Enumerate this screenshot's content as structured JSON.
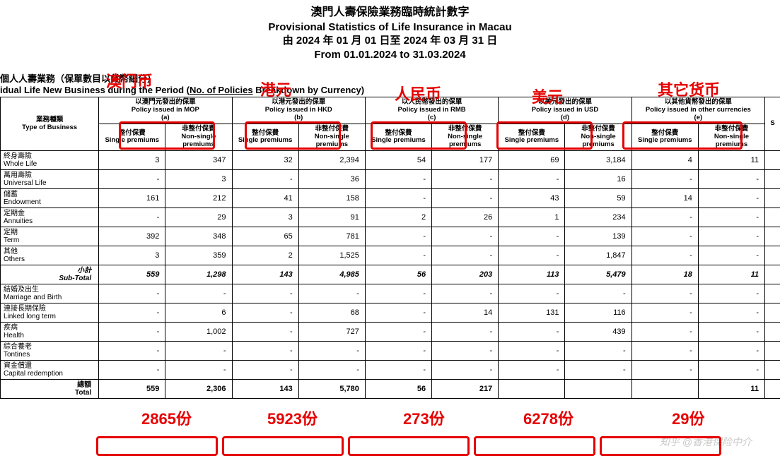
{
  "header": {
    "title_cn": "澳門人壽保險業務臨時統計數字",
    "title_en": "Provisional Statistics of Life Insurance in Macau",
    "period_cn": "由 2024 年 01 月 01 日至 2024 年 03 月 31 日",
    "period_en": "From 01.01.2024 to 31.03.2024"
  },
  "subhead": {
    "cn": "個人人壽業務（保單數目以貨幣細分）",
    "en_pre": "idual Life New Business during the Period (",
    "en_underline": "No. of Policies",
    "en_post": " Breakdown by Currency)"
  },
  "columns": {
    "type_cn": "業務種類",
    "type_en": "Type of Business",
    "groups": [
      {
        "cn": "以澳門元發出的保單",
        "en": "Policy issued in MOP",
        "tag": "(a)"
      },
      {
        "cn": "以港元發出的保單",
        "en": "Policy issued in HKD",
        "tag": "(b)"
      },
      {
        "cn": "以人民幣發出的保單",
        "en": "Policy issued in RMB",
        "tag": "(c)"
      },
      {
        "cn": "以美元發出的保單",
        "en": "Policy issued in USD",
        "tag": "(d)"
      },
      {
        "cn": "以其他貨幣發出的保單",
        "en": "Policy issued in other currencies",
        "tag": "(e)"
      }
    ],
    "sub_single_cn": "整付保費",
    "sub_single_en": "Single premiums",
    "sub_non_cn": "非整付保費",
    "sub_non_en": "Non-single premiums"
  },
  "rows": [
    {
      "cn": "終身壽險",
      "en": "Whole Life",
      "v": [
        "3",
        "347",
        "32",
        "2,394",
        "54",
        "177",
        "69",
        "3,184",
        "4",
        "11"
      ]
    },
    {
      "cn": "萬用壽險",
      "en": "Universal Life",
      "v": [
        "-",
        "3",
        "-",
        "36",
        "-",
        "-",
        "-",
        "16",
        "-",
        "-"
      ]
    },
    {
      "cn": "儲蓄",
      "en": "Endowment",
      "v": [
        "161",
        "212",
        "41",
        "158",
        "-",
        "-",
        "43",
        "59",
        "14",
        "-"
      ]
    },
    {
      "cn": "定期金",
      "en": "Annuities",
      "v": [
        "-",
        "29",
        "3",
        "91",
        "2",
        "26",
        "1",
        "234",
        "-",
        "-"
      ]
    },
    {
      "cn": "定期",
      "en": "Term",
      "v": [
        "392",
        "348",
        "65",
        "781",
        "-",
        "-",
        "-",
        "139",
        "-",
        "-"
      ]
    },
    {
      "cn": "其他",
      "en": "Others",
      "v": [
        "3",
        "359",
        "2",
        "1,525",
        "-",
        "-",
        "-",
        "1,847",
        "-",
        "-"
      ]
    }
  ],
  "subtotal": {
    "cn": "小計",
    "en": "Sub-Total",
    "v": [
      "559",
      "1,298",
      "143",
      "4,985",
      "56",
      "203",
      "113",
      "5,479",
      "18",
      "11"
    ]
  },
  "rows2": [
    {
      "cn": "結婚及出生",
      "en": "Marriage and Birth",
      "v": [
        "-",
        "-",
        "-",
        "-",
        "-",
        "-",
        "-",
        "-",
        "-",
        "-"
      ]
    },
    {
      "cn": "連接長期保險",
      "en": "Linked long term",
      "v": [
        "-",
        "6",
        "-",
        "68",
        "-",
        "14",
        "131",
        "116",
        "-",
        "-"
      ]
    },
    {
      "cn": "疾病",
      "en": "Health",
      "v": [
        "-",
        "1,002",
        "-",
        "727",
        "-",
        "-",
        "-",
        "439",
        "-",
        "-"
      ]
    },
    {
      "cn": "綜合養老",
      "en": "Tontines",
      "v": [
        "-",
        "-",
        "-",
        "-",
        "-",
        "-",
        "-",
        "-",
        "-",
        "-"
      ]
    },
    {
      "cn": "資金償還",
      "en": "Capital redemption",
      "v": [
        "-",
        "-",
        "-",
        "-",
        "-",
        "-",
        "-",
        "-",
        "-",
        "-"
      ]
    }
  ],
  "total": {
    "cn": "總額",
    "en": "Total",
    "v": [
      "559",
      "2,306",
      "143",
      "5,780",
      "56",
      "217",
      "",
      "",
      "",
      "11"
    ]
  },
  "annotations": {
    "currency_labels": [
      "澳门币",
      "港元",
      "人民币",
      "美元",
      "其它货币"
    ],
    "counts": [
      "2865份",
      "5923份",
      "273份",
      "6278份",
      "29份"
    ],
    "watermark": "知乎 @香港保险中介"
  },
  "style": {
    "anno_color": "#e60000",
    "anno_box_border": "3px",
    "background": "#ffffff"
  }
}
